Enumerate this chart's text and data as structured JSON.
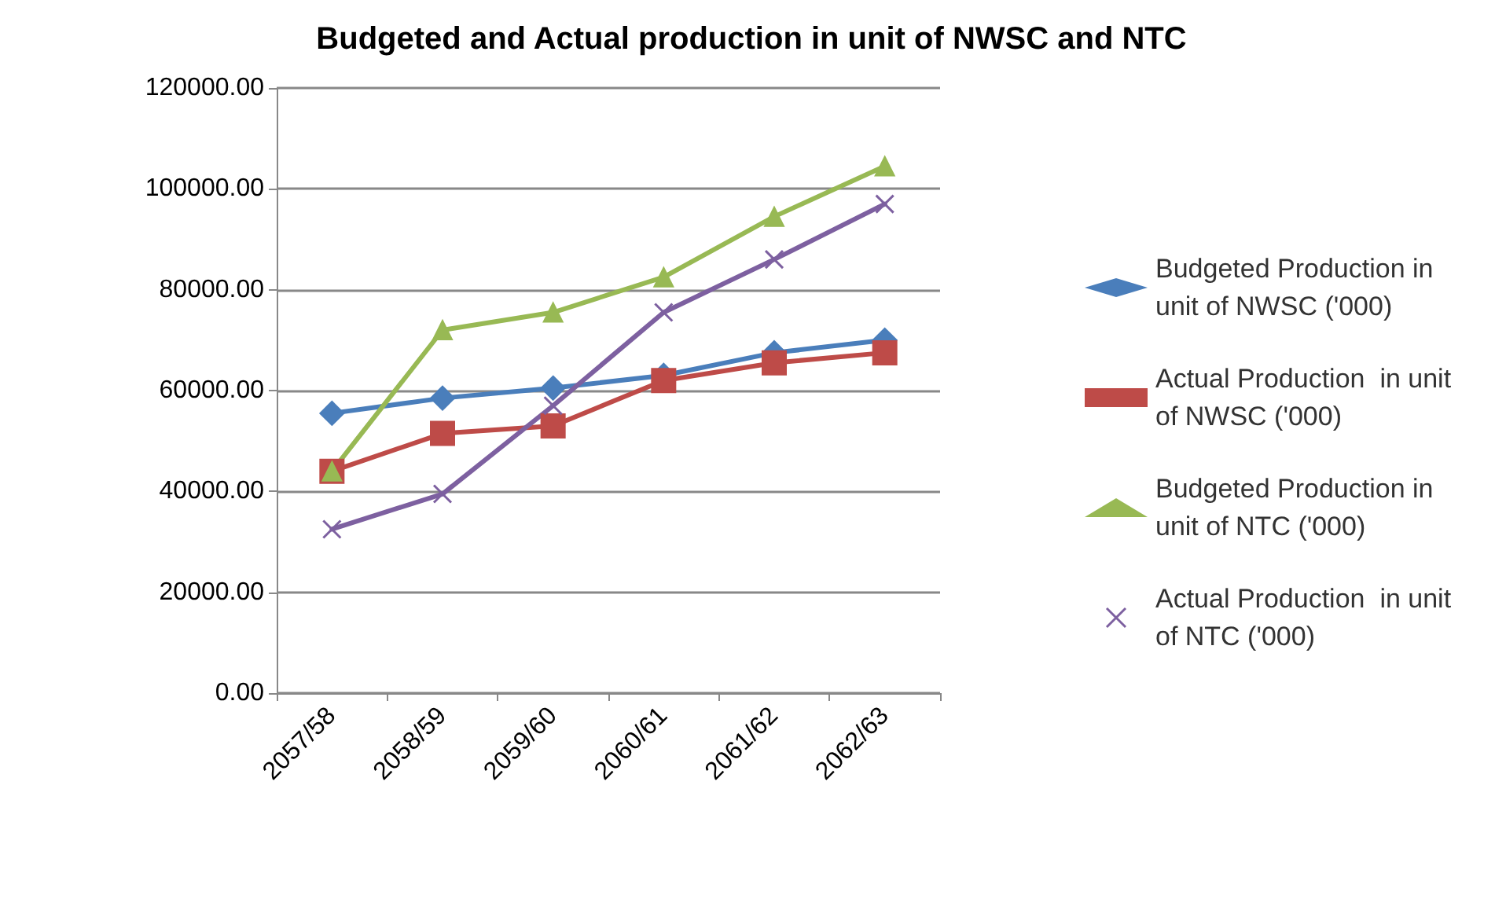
{
  "chart_data": {
    "type": "line",
    "title": "Budgeted and Actual production in unit of NWSC and NTC",
    "categories": [
      "2057/58",
      "2058/59",
      "2059/60",
      "2060/61",
      "2061/62",
      "2062/63"
    ],
    "series": [
      {
        "name": "Budgeted Production in unit of NWSC ('000)",
        "color": "#4a7ebb",
        "marker": "diamond",
        "values": [
          55500,
          58500,
          60500,
          63000,
          67500,
          70000
        ]
      },
      {
        "name": "Actual Production  in unit of NWSC ('000)",
        "color": "#be4b48",
        "marker": "square",
        "values": [
          44000,
          51500,
          53000,
          62000,
          65500,
          67500
        ]
      },
      {
        "name": "Budgeted Production in unit of NTC ('000)",
        "color": "#98b954",
        "marker": "triangle",
        "values": [
          44000,
          72000,
          75500,
          82500,
          94500,
          104500
        ]
      },
      {
        "name": "Actual Production  in unit of NTC ('000)",
        "color": "#7d60a0",
        "marker": "cross",
        "values": [
          32500,
          39500,
          57000,
          75500,
          86000,
          97000
        ]
      }
    ],
    "ylim": [
      0,
      120000
    ],
    "yticks": [
      {
        "value": 0,
        "label": "0.00"
      },
      {
        "value": 20000,
        "label": "20000.00"
      },
      {
        "value": 40000,
        "label": "40000.00"
      },
      {
        "value": 60000,
        "label": "60000.00"
      },
      {
        "value": 80000,
        "label": "80000.00"
      },
      {
        "value": 100000,
        "label": "100000.00"
      },
      {
        "value": 120000,
        "label": "120000.00"
      }
    ],
    "grid": "y",
    "legend": "right",
    "line_style": "solid"
  }
}
